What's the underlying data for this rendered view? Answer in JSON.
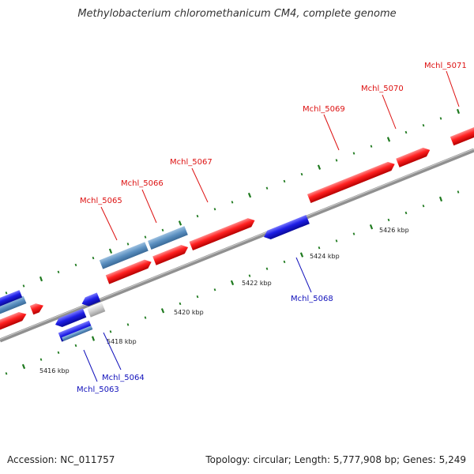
{
  "title": "Methylobacterium chloromethanicum CM4, complete genome",
  "footer": {
    "accession": "Accession: NC_011757",
    "summary": "Topology: circular; Length: 5,777,908 bp; Genes: 5,249"
  },
  "colors": {
    "forward_cds": "#ff2020",
    "reverse_cds": "#1e1ee6",
    "rna": "#5a8fc0",
    "other": "#cccccc",
    "backbone": "#909090",
    "ticks": "#1f7a1f",
    "label_forward": "#dd1111",
    "label_reverse": "#1111bb"
  },
  "ticks": [
    {
      "label": "5416 kbp"
    },
    {
      "label": "5418 kbp"
    },
    {
      "label": "5420 kbp"
    },
    {
      "label": "5422 kbp"
    },
    {
      "label": "5424 kbp"
    },
    {
      "label": "5426 kbp"
    }
  ],
  "gene_labels": [
    {
      "text": "Mchl_5063",
      "strand": "reverse"
    },
    {
      "text": "Mchl_5064",
      "strand": "reverse"
    },
    {
      "text": "Mchl_5065",
      "strand": "forward"
    },
    {
      "text": "Mchl_5066",
      "strand": "forward"
    },
    {
      "text": "Mchl_5067",
      "strand": "forward"
    },
    {
      "text": "Mchl_5068",
      "strand": "reverse"
    },
    {
      "text": "Mchl_5069",
      "strand": "forward"
    },
    {
      "text": "Mchl_5070",
      "strand": "forward"
    },
    {
      "text": "Mchl_5071",
      "strand": "forward"
    }
  ]
}
